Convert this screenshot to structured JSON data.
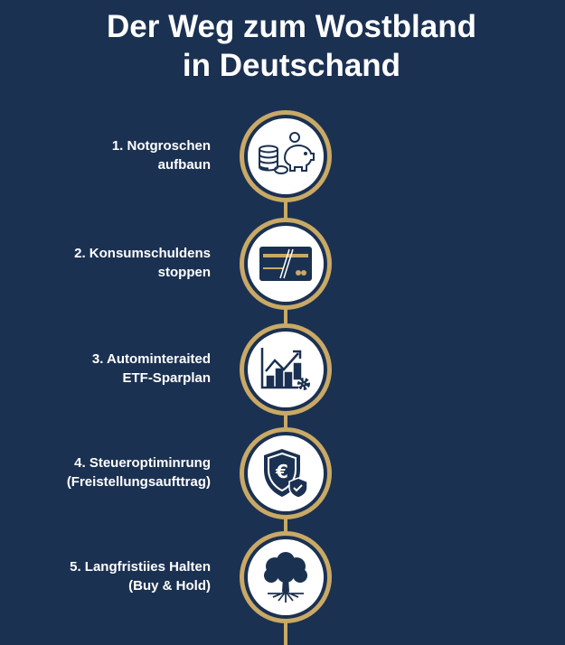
{
  "title": {
    "line1": "Der Weg zum Wostbland",
    "line2": "in Deutschand"
  },
  "colors": {
    "background": "#1b3152",
    "accent_gold": "#c9a965",
    "icon_navy": "#1b3152"
  },
  "steps": [
    {
      "line1": "1. Notgroschen",
      "line2": "aufbaun",
      "icon": "piggy-bank-coins-icon"
    },
    {
      "line1": "2. Konsumschuldens",
      "line2": "stoppen",
      "icon": "credit-card-cut-icon"
    },
    {
      "line1": "3. Autominteraited",
      "line2": "ETF-Sparplan",
      "icon": "growth-chart-gear-icon"
    },
    {
      "line1": "4. Steueroptiminrung",
      "line2": "(Freistellungsaufttrag)",
      "icon": "euro-shield-check-icon"
    },
    {
      "line1": "5. Langfristiies Halten",
      "line2": "(Buy & Hold)",
      "icon": "tree-roots-icon"
    }
  ]
}
